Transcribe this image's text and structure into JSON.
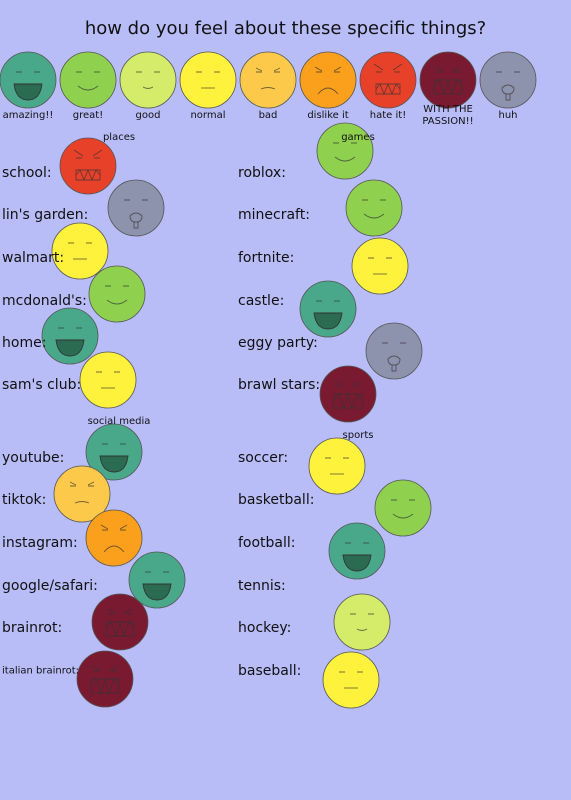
{
  "title": "how do you feel about these specific things?",
  "legend": [
    "amazing!!",
    "great!",
    "good",
    "normal",
    "bad",
    "dislike it",
    "hate it!",
    "WITH THE PASSION!!",
    "huh"
  ],
  "sections": [
    {
      "label": "places",
      "items": [
        "school:",
        "lin's garden:",
        "walmart:",
        "mcdonald's:",
        "home:",
        "sam's club:"
      ]
    },
    {
      "label": "social media",
      "items": [
        "youtube:",
        "tiktok:",
        "instagram:",
        "google/safari:",
        "brainrot:",
        "italian brainrot:"
      ]
    },
    {
      "label": "games",
      "items": [
        "roblox:",
        "minecraft:",
        "fortnite:",
        "castle:",
        "eggy party:",
        "brawl stars:"
      ]
    },
    {
      "label": "sports",
      "items": [
        "soccer:",
        "basketball:",
        "football:",
        "tennis:",
        "hockey:",
        "baseball:"
      ]
    }
  ]
}
